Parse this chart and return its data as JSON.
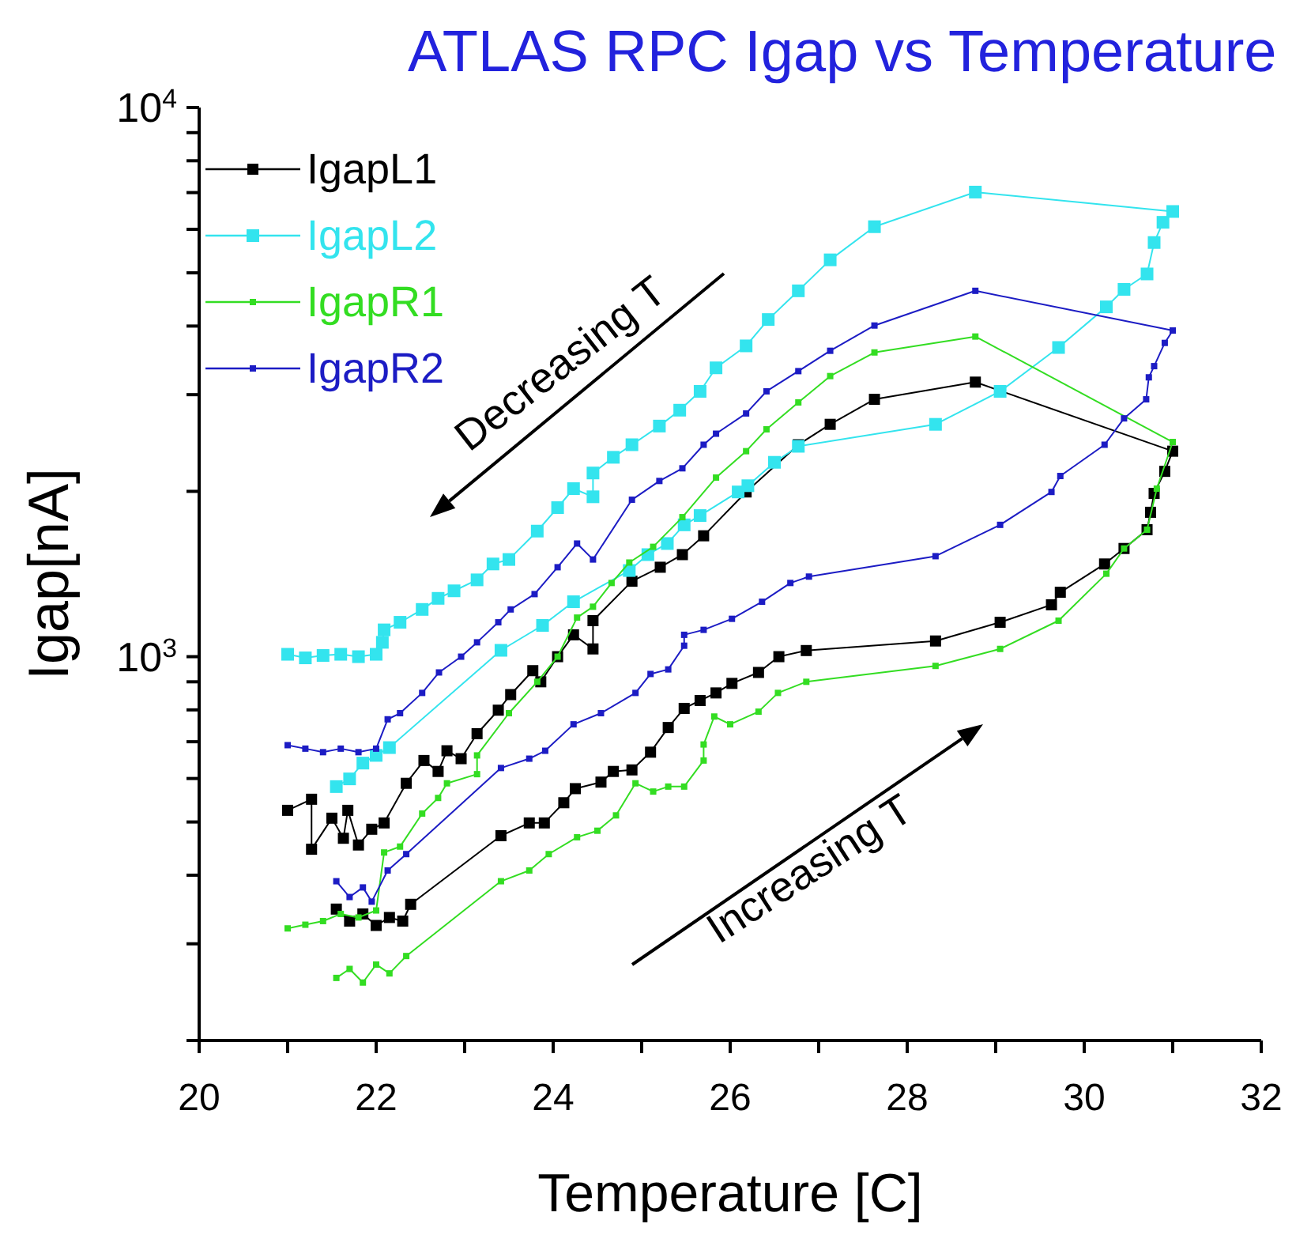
{
  "chart_data": {
    "type": "line",
    "title": "ATLAS RPC Igap vs Temperature",
    "xlabel": "Temperature [C]",
    "ylabel": "Igap[nA]",
    "annotations": [
      "Decreasing T",
      "Increasing T"
    ],
    "xlim": [
      20,
      32
    ],
    "xticks": [
      20,
      {
        "value": 21,
        "label": null
      },
      22,
      {
        "value": 23,
        "label": null
      },
      24,
      {
        "value": 25,
        "label": null
      },
      26,
      {
        "value": 27,
        "label": null
      },
      28,
      {
        "value": 29,
        "label": null
      },
      30,
      {
        "value": 31,
        "label": null
      },
      32
    ],
    "ylim": [
      200,
      10000
    ],
    "yticks": [
      {
        "value": 200,
        "label": null
      },
      {
        "value": 300,
        "label": null
      },
      {
        "value": 400,
        "label": null
      },
      {
        "value": 500,
        "label": null
      },
      {
        "value": 600,
        "label": null
      },
      {
        "value": 700,
        "label": null
      },
      {
        "value": 800,
        "label": null
      },
      {
        "value": 900,
        "label": null
      },
      {
        "value": 1000,
        "label": "10$^{3}$"
      },
      {
        "value": 2000,
        "label": null
      },
      {
        "value": 3000,
        "label": null
      },
      {
        "value": 4000,
        "label": null
      },
      {
        "value": 5000,
        "label": null
      },
      {
        "value": 6000,
        "label": null
      },
      {
        "value": 7000,
        "label": null
      },
      {
        "value": 8000,
        "label": null
      },
      {
        "value": 9000,
        "label": null
      },
      {
        "value": 10000,
        "label": "10$^{4}$"
      }
    ],
    "log": "y",
    "legend": "top left",
    "marker": "square",
    "line_style": "solid",
    "series": [
      {
        "name": "IgapL1",
        "color": "#000000",
        "x": [
          21.55,
          21.7,
          21.85,
          22.0,
          22.15,
          22.3,
          22.39,
          23.41,
          23.73,
          23.9,
          24.12,
          24.25,
          24.54,
          24.68,
          24.89,
          25.1,
          25.3,
          25.48,
          25.66,
          25.84,
          26.02,
          26.32,
          26.55,
          26.86,
          28.32,
          29.05,
          29.63,
          29.73,
          30.23,
          30.45,
          30.71,
          30.75,
          30.79,
          30.91,
          31.0,
          28.77,
          27.63,
          27.13,
          26.77,
          26.18,
          25.7,
          25.46,
          25.21,
          24.89,
          24.45,
          24.45,
          24.23,
          24.05,
          23.86,
          23.77,
          23.52,
          23.38,
          23.14,
          22.96,
          22.8,
          22.7,
          22.54,
          22.34,
          22.09,
          21.95,
          21.8,
          21.68,
          21.63,
          21.5,
          21.27,
          21.27,
          21.0
        ],
        "values": [
          347,
          330,
          340,
          324,
          335,
          330,
          354,
          472,
          498,
          498,
          542,
          575,
          591,
          618,
          622,
          670,
          743,
          805,
          832,
          859,
          894,
          936,
          1000,
          1026,
          1068,
          1155,
          1243,
          1310,
          1475,
          1574,
          1703,
          1832,
          1983,
          2175,
          2367,
          3162,
          2942,
          2649,
          2432,
          1995,
          1660,
          1534,
          1455,
          1372,
          1163,
          1033,
          1096,
          1000,
          900,
          943,
          853,
          799,
          724,
          652,
          674,
          618,
          647,
          588,
          498,
          485,
          454,
          525,
          467,
          508,
          446,
          550,
          525
        ]
      },
      {
        "name": "IgapL2",
        "color": "#33e4ee",
        "x": [
          21.55,
          21.7,
          21.85,
          22.0,
          22.15,
          23.41,
          23.88,
          24.23,
          24.86,
          25.07,
          25.29,
          25.48,
          25.66,
          26.09,
          26.2,
          26.5,
          26.77,
          28.32,
          29.05,
          29.71,
          30.25,
          30.45,
          30.71,
          30.79,
          30.89,
          31.0,
          28.77,
          27.63,
          27.13,
          26.77,
          26.43,
          26.18,
          25.84,
          25.66,
          25.43,
          25.2,
          24.89,
          24.68,
          24.45,
          24.45,
          24.23,
          24.05,
          23.82,
          23.5,
          23.32,
          23.14,
          22.88,
          22.7,
          22.52,
          22.27,
          22.09,
          22.07,
          22.0,
          21.8,
          21.6,
          21.4,
          21.2,
          21.0
        ],
        "values": [
          580,
          599,
          640,
          661,
          683,
          1027,
          1140,
          1259,
          1435,
          1534,
          1607,
          1738,
          1807,
          1995,
          2048,
          2259,
          2416,
          2649,
          3042,
          3656,
          4335,
          4665,
          4977,
          5678,
          6180,
          6467,
          7015,
          6067,
          5280,
          4637,
          4111,
          3681,
          3357,
          3042,
          2811,
          2630,
          2432,
          2307,
          2160,
          1955,
          2023,
          1868,
          1693,
          1503,
          1475,
          1380,
          1318,
          1277,
          1219,
          1155,
          1119,
          1062,
          1010,
          1000,
          1010,
          1005,
          995,
          1010
        ]
      },
      {
        "name": "IgapR1",
        "color": "#33dd22",
        "x": [
          21.55,
          21.7,
          21.85,
          22.0,
          22.15,
          22.34,
          23.41,
          23.73,
          23.95,
          24.27,
          24.5,
          24.71,
          24.93,
          25.13,
          25.3,
          25.48,
          25.7,
          25.7,
          25.82,
          26.0,
          26.32,
          26.54,
          26.86,
          28.32,
          29.05,
          29.71,
          30.25,
          30.45,
          30.71,
          30.82,
          31.0,
          28.77,
          27.63,
          27.13,
          26.77,
          26.41,
          26.18,
          25.84,
          25.46,
          25.13,
          24.86,
          24.66,
          24.45,
          24.27,
          24.05,
          23.82,
          23.5,
          23.14,
          23.14,
          22.8,
          22.7,
          22.52,
          22.27,
          22.09,
          22.0,
          21.8,
          21.6,
          21.4,
          21.2,
          21.0
        ],
        "values": [
          260,
          270,
          255,
          275,
          265,
          285,
          390,
          408,
          437,
          469,
          482,
          514,
          588,
          568,
          580,
          580,
          647,
          692,
          778,
          753,
          794,
          859,
          900,
          962,
          1033,
          1163,
          1416,
          1574,
          1703,
          2023,
          2460,
          3828,
          3581,
          3243,
          2904,
          2594,
          2367,
          2119,
          1795,
          1585,
          1484,
          1362,
          1233,
          1178,
          1000,
          900,
          789,
          661,
          611,
          588,
          553,
          518,
          451,
          440,
          345,
          335,
          340,
          330,
          325,
          320
        ]
      },
      {
        "name": "IgapR2",
        "color": "#1c1cc4",
        "x": [
          21.55,
          21.7,
          21.85,
          21.95,
          22.13,
          22.34,
          23.41,
          23.73,
          23.91,
          24.23,
          24.54,
          24.93,
          25.1,
          25.3,
          25.48,
          25.48,
          25.7,
          26.02,
          26.36,
          26.68,
          26.89,
          28.32,
          29.05,
          29.63,
          29.73,
          30.23,
          30.45,
          30.7,
          30.73,
          30.79,
          30.91,
          31.0,
          28.77,
          27.63,
          27.13,
          26.77,
          26.41,
          26.18,
          25.84,
          25.7,
          25.46,
          25.2,
          24.89,
          24.45,
          24.27,
          24.05,
          23.79,
          23.52,
          23.38,
          23.14,
          22.96,
          22.71,
          22.52,
          22.27,
          22.13,
          22.0,
          21.8,
          21.6,
          21.4,
          21.2,
          21.0
        ],
        "values": [
          390,
          365,
          380,
          358,
          408,
          437,
          627,
          652,
          674,
          753,
          789,
          859,
          930,
          948,
          1047,
          1096,
          1119,
          1172,
          1259,
          1362,
          1399,
          1524,
          1738,
          1995,
          2133,
          2432,
          2716,
          2942,
          3226,
          3381,
          3727,
          3926,
          4637,
          4009,
          3606,
          3311,
          3042,
          2773,
          2547,
          2432,
          2203,
          2089,
          1931,
          1503,
          1607,
          1455,
          1300,
          1219,
          1155,
          1062,
          1000,
          936,
          859,
          789,
          769,
          680,
          670,
          680,
          670,
          680,
          690
        ]
      }
    ]
  }
}
